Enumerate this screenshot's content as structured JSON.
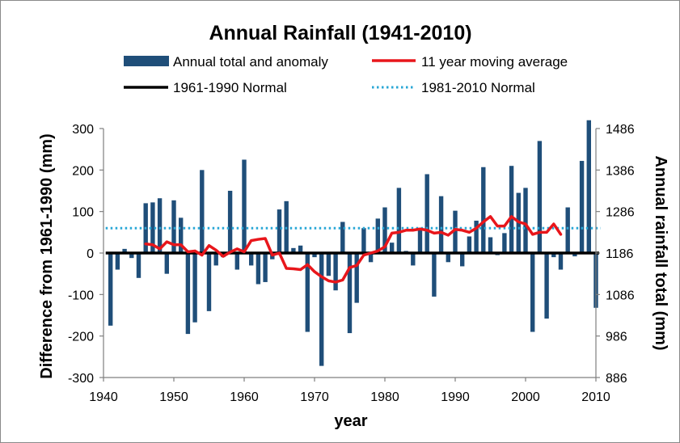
{
  "chart_data": {
    "type": "bar",
    "title": "Annual Rainfall (1941-2010)",
    "xlabel": "year",
    "ylabel": "Difference from 1961-1990 (mm)",
    "y2label": "Annual rainfall total (mm)",
    "xlim": [
      1940,
      2010
    ],
    "ylim": [
      -300,
      300
    ],
    "y2lim": [
      886,
      1486
    ],
    "x_ticks": [
      "1940",
      "1950",
      "1960",
      "1970",
      "1980",
      "1990",
      "2000",
      "2010"
    ],
    "y_ticks": [
      "300",
      "200",
      "100",
      "0",
      "-100",
      "-200",
      "-300"
    ],
    "y2_ticks": [
      "1486",
      "1386",
      "1286",
      "1186",
      "1086",
      "986",
      "886"
    ],
    "grid": false,
    "legend_position": "top",
    "series": [
      {
        "name": "Annual total and anomaly",
        "type": "bar",
        "color": "#1f4e79",
        "x": [
          1941,
          1942,
          1943,
          1944,
          1945,
          1946,
          1947,
          1948,
          1949,
          1950,
          1951,
          1952,
          1953,
          1954,
          1955,
          1956,
          1957,
          1958,
          1959,
          1960,
          1961,
          1962,
          1963,
          1964,
          1965,
          1966,
          1967,
          1968,
          1969,
          1970,
          1971,
          1972,
          1973,
          1974,
          1975,
          1976,
          1977,
          1978,
          1979,
          1980,
          1981,
          1982,
          1983,
          1984,
          1985,
          1986,
          1987,
          1988,
          1989,
          1990,
          1991,
          1992,
          1993,
          1994,
          1995,
          1996,
          1997,
          1998,
          1999,
          2000,
          2001,
          2002,
          2003,
          2004,
          2005,
          2006,
          2007,
          2008,
          2009,
          2010
        ],
        "values": [
          -175,
          -40,
          10,
          -12,
          -60,
          120,
          122,
          132,
          -50,
          127,
          85,
          -195,
          -167,
          200,
          -140,
          -30,
          -10,
          150,
          -40,
          225,
          -30,
          -75,
          -70,
          -15,
          105,
          125,
          12,
          18,
          -190,
          -10,
          -272,
          -55,
          -90,
          75,
          -193,
          -120,
          60,
          -22,
          83,
          110,
          25,
          157,
          5,
          -30,
          60,
          190,
          -105,
          137,
          -22,
          102,
          -32,
          40,
          78,
          207,
          38,
          -5,
          48,
          210,
          145,
          157,
          -190,
          270,
          -158,
          -10,
          -40,
          110,
          -8,
          222,
          320,
          -132
        ]
      },
      {
        "name": "11 year moving average",
        "type": "line",
        "color": "#e8161b",
        "x": [
          1946,
          1947,
          1948,
          1949,
          1950,
          1951,
          1952,
          1953,
          1954,
          1955,
          1956,
          1957,
          1958,
          1959,
          1960,
          1961,
          1962,
          1963,
          1964,
          1965,
          1966,
          1967,
          1968,
          1969,
          1970,
          1971,
          1972,
          1973,
          1974,
          1975,
          1976,
          1977,
          1978,
          1979,
          1980,
          1981,
          1982,
          1983,
          1984,
          1985,
          1986,
          1987,
          1988,
          1989,
          1990,
          1991,
          1992,
          1993,
          1994,
          1995,
          1996,
          1997,
          1998,
          1999,
          2000,
          2001,
          2002,
          2003,
          2004,
          2005
        ],
        "values": [
          22,
          20,
          10,
          27,
          20,
          20,
          3,
          5,
          -5,
          18,
          7,
          -8,
          2,
          10,
          3,
          30,
          33,
          35,
          -5,
          0,
          -37,
          -38,
          -40,
          -28,
          -45,
          -57,
          -67,
          -70,
          -65,
          -35,
          -30,
          -5,
          0,
          5,
          15,
          48,
          50,
          55,
          55,
          58,
          55,
          48,
          50,
          43,
          57,
          55,
          50,
          60,
          75,
          88,
          65,
          65,
          88,
          75,
          70,
          45,
          50,
          50,
          70,
          45
        ]
      },
      {
        "name": "1961-1990 Normal",
        "type": "hline",
        "color": "#000000",
        "value": 0
      },
      {
        "name": "1981-2010 Normal",
        "type": "hline",
        "color": "#2aa7d6",
        "value": 60
      }
    ]
  }
}
